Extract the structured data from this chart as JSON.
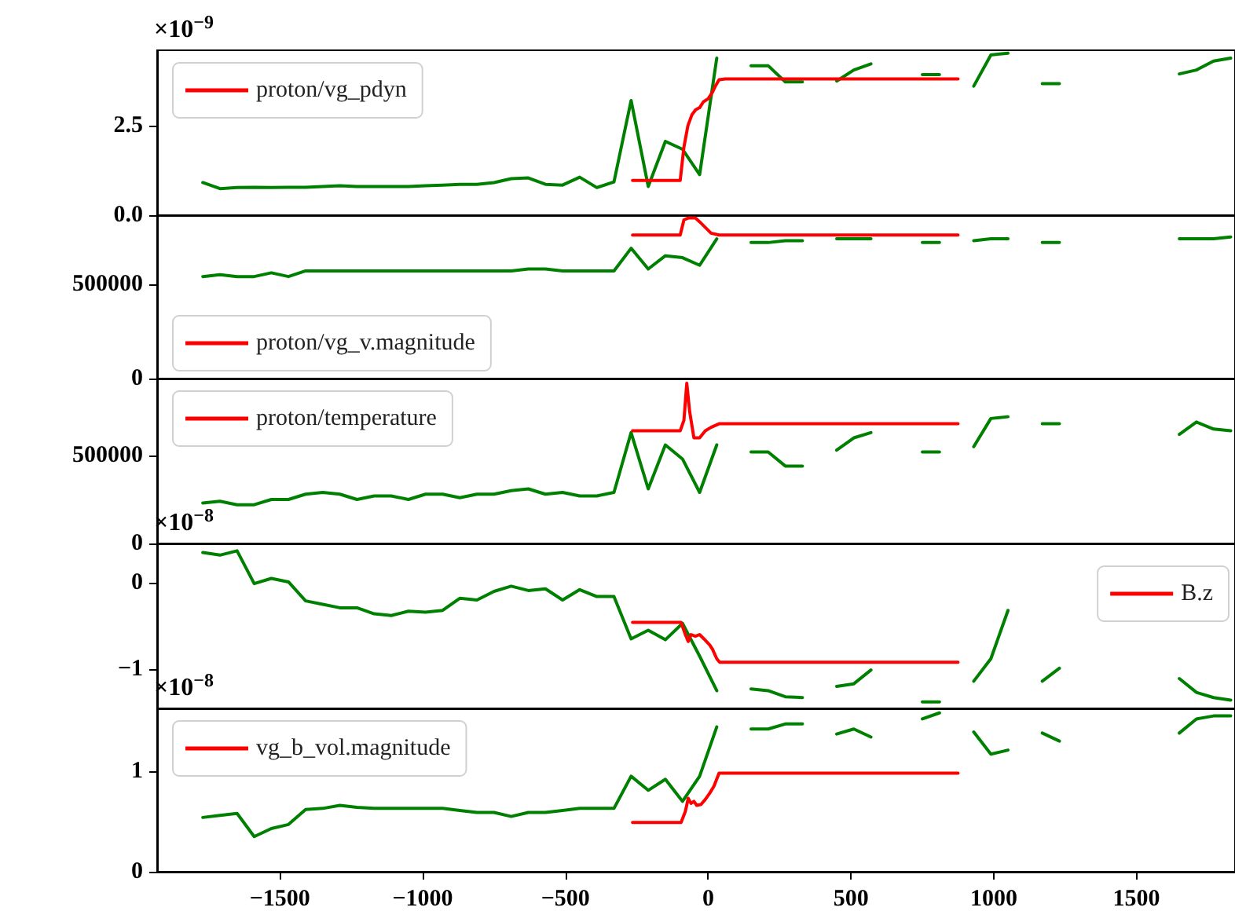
{
  "chart_data": [
    {
      "type": "line",
      "annotations": [
        "×10$^{−9}$"
      ],
      "legend": "top left",
      "tick_labels": "y",
      "xlim": [
        -1930,
        1845
      ],
      "ylim": [
        0,
        4.6
      ],
      "yticks": [
        {
          "value": 0,
          "label": "0.0"
        },
        {
          "value": 2.5,
          "label": "2.5"
        }
      ],
      "x": [
        -1770,
        -1710,
        -1650,
        -1590,
        -1530,
        -1470,
        -1410,
        -1350,
        -1290,
        -1230,
        -1170,
        -1110,
        -1050,
        -990,
        -930,
        -870,
        -810,
        -750,
        -690,
        -630,
        -570,
        -510,
        -450,
        -390,
        -330,
        -270,
        -210,
        -150,
        -90,
        -30,
        30,
        90,
        150,
        210,
        270,
        330,
        390,
        450,
        510,
        570,
        630,
        690,
        750,
        810,
        870,
        930,
        990,
        1050,
        1110,
        1170,
        1230,
        1290,
        1350,
        1410,
        1470,
        1530,
        1590,
        1650,
        1710,
        1770,
        1830
      ],
      "series": [
        {
          "color": "#008000",
          "values": [
            0.91,
            0.74,
            0.77,
            0.78,
            0.77,
            0.78,
            0.78,
            0.8,
            0.82,
            0.8,
            0.8,
            0.8,
            0.8,
            0.82,
            0.84,
            0.86,
            0.86,
            0.91,
            1.02,
            1.04,
            0.86,
            0.84,
            1.06,
            0.77,
            0.93,
            3.2,
            0.8,
            2.06,
            1.84,
            1.13,
            4.38,
            null,
            4.17,
            4.17,
            3.72,
            3.72,
            null,
            3.74,
            4.05,
            4.22,
            null,
            null,
            3.92,
            3.92,
            null,
            3.6,
            4.47,
            4.52,
            null,
            3.67,
            3.67,
            null,
            null,
            null,
            null,
            null,
            null,
            3.94,
            4.05,
            4.3,
            4.38
          ]
        },
        {
          "name": "proton/vg_pdyn",
          "color": "#ff0000",
          "x": [
            -265,
            -98,
            -85,
            -71,
            -57,
            -44,
            -30,
            -17,
            0,
            15,
            25,
            38,
            60,
            875
          ],
          "values": [
            0.97,
            0.97,
            1.9,
            2.5,
            2.8,
            2.94,
            3.0,
            3.16,
            3.25,
            3.43,
            3.6,
            3.78,
            3.8,
            3.8
          ]
        }
      ]
    },
    {
      "type": "line",
      "legend": "bottom left",
      "tick_labels": "y",
      "xlim": [
        -1930,
        1845
      ],
      "ylim": [
        0,
        865000
      ],
      "yticks": [
        0,
        500000
      ],
      "x": [
        -1770,
        -1710,
        -1650,
        -1590,
        -1530,
        -1470,
        -1410,
        -1350,
        -1290,
        -1230,
        -1170,
        -1110,
        -1050,
        -990,
        -930,
        -870,
        -810,
        -750,
        -690,
        -630,
        -570,
        -510,
        -450,
        -390,
        -330,
        -270,
        -210,
        -150,
        -90,
        -30,
        30,
        90,
        150,
        210,
        270,
        330,
        390,
        450,
        510,
        570,
        630,
        690,
        750,
        810,
        870,
        930,
        990,
        1050,
        1110,
        1170,
        1230,
        1290,
        1350,
        1410,
        1470,
        1530,
        1590,
        1650,
        1710,
        1770,
        1830
      ],
      "series": [
        {
          "color": "#008000",
          "values": [
            540000,
            550000,
            540000,
            540000,
            560000,
            540000,
            570000,
            570000,
            570000,
            570000,
            570000,
            570000,
            570000,
            570000,
            570000,
            570000,
            570000,
            570000,
            570000,
            580000,
            580000,
            570000,
            570000,
            570000,
            570000,
            690000,
            580000,
            650000,
            640000,
            600000,
            740000,
            null,
            720000,
            720000,
            730000,
            730000,
            null,
            740000,
            740000,
            740000,
            null,
            null,
            720000,
            720000,
            null,
            730000,
            740000,
            740000,
            null,
            720000,
            720000,
            null,
            null,
            null,
            null,
            null,
            null,
            740000,
            740000,
            740000,
            750000
          ]
        },
        {
          "name": "proton/vg_v.magnitude",
          "color": "#ff0000",
          "x": [
            -265,
            -98,
            -85,
            -70,
            -45,
            -30,
            -10,
            10,
            38,
            875
          ],
          "values": [
            760000,
            760000,
            840000,
            850000,
            850000,
            830000,
            800000,
            770000,
            760000,
            760000
          ]
        }
      ]
    },
    {
      "type": "line",
      "legend": "top left",
      "tick_labels": "y",
      "xlim": [
        -1930,
        1845
      ],
      "ylim": [
        0,
        937000
      ],
      "yticks": [
        0,
        500000
      ],
      "x": [
        -1770,
        -1710,
        -1650,
        -1590,
        -1530,
        -1470,
        -1410,
        -1350,
        -1290,
        -1230,
        -1170,
        -1110,
        -1050,
        -990,
        -930,
        -870,
        -810,
        -750,
        -690,
        -630,
        -570,
        -510,
        -450,
        -390,
        -330,
        -270,
        -210,
        -150,
        -90,
        -30,
        30,
        90,
        150,
        210,
        270,
        330,
        390,
        450,
        510,
        570,
        630,
        690,
        750,
        810,
        870,
        930,
        990,
        1050,
        1110,
        1170,
        1230,
        1290,
        1350,
        1410,
        1470,
        1530,
        1590,
        1650,
        1710,
        1770,
        1830
      ],
      "series": [
        {
          "color": "#008000",
          "values": [
            230000,
            240000,
            220000,
            220000,
            250000,
            250000,
            280000,
            290000,
            280000,
            250000,
            270000,
            270000,
            250000,
            280000,
            280000,
            260000,
            280000,
            280000,
            300000,
            310000,
            280000,
            290000,
            270000,
            270000,
            290000,
            630000,
            310000,
            560000,
            480000,
            290000,
            560000,
            null,
            520000,
            520000,
            440000,
            440000,
            null,
            530000,
            600000,
            630000,
            null,
            null,
            520000,
            520000,
            null,
            550000,
            710000,
            720000,
            null,
            680000,
            680000,
            null,
            null,
            null,
            null,
            null,
            null,
            620000,
            690000,
            650000,
            640000
          ]
        },
        {
          "name": "proton/temperature",
          "color": "#ff0000",
          "x": [
            -265,
            -98,
            -85,
            -75,
            -65,
            -50,
            -30,
            -10,
            10,
            38,
            875
          ],
          "values": [
            640000,
            640000,
            700000,
            910000,
            750000,
            600000,
            600000,
            640000,
            660000,
            680000,
            680000
          ]
        }
      ]
    },
    {
      "type": "line",
      "annotations": [
        "×10$^{−8}$"
      ],
      "legend": "right",
      "tick_labels": "y",
      "xlim": [
        -1930,
        1845
      ],
      "ylim": [
        -1.455,
        0.455
      ],
      "yticks": [
        {
          "value": -1,
          "label": "−1"
        },
        0
      ],
      "x": [
        -1770,
        -1710,
        -1650,
        -1590,
        -1530,
        -1470,
        -1410,
        -1350,
        -1290,
        -1230,
        -1170,
        -1110,
        -1050,
        -990,
        -930,
        -870,
        -810,
        -750,
        -690,
        -630,
        -570,
        -510,
        -450,
        -390,
        -330,
        -270,
        -210,
        -150,
        -90,
        -30,
        30,
        90,
        150,
        210,
        270,
        330,
        390,
        450,
        510,
        570,
        630,
        690,
        750,
        810,
        870,
        930,
        990,
        1050,
        1110,
        1170,
        1230,
        1290,
        1350,
        1410,
        1470,
        1530,
        1590,
        1650,
        1710,
        1770,
        1830
      ],
      "series": [
        {
          "color": "#008000",
          "values": [
            0.35,
            0.32,
            0.37,
            -0.01,
            0.05,
            0.01,
            -0.21,
            -0.25,
            -0.29,
            -0.29,
            -0.36,
            -0.38,
            -0.33,
            -0.34,
            -0.32,
            -0.18,
            -0.2,
            -0.1,
            -0.04,
            -0.09,
            -0.07,
            -0.2,
            -0.08,
            -0.16,
            -0.16,
            -0.65,
            -0.55,
            -0.66,
            -0.47,
            -0.85,
            -1.25,
            null,
            -1.23,
            -1.25,
            -1.32,
            -1.33,
            null,
            -1.2,
            -1.17,
            -1.01,
            null,
            null,
            -1.38,
            -1.38,
            null,
            -1.14,
            -0.88,
            -0.32,
            null,
            -1.14,
            -0.99,
            null,
            null,
            null,
            null,
            null,
            null,
            -1.11,
            -1.27,
            -1.33,
            -1.36
          ]
        },
        {
          "name": "B.z",
          "color": "#ff0000",
          "x": [
            -265,
            -95,
            -80,
            -70,
            -60,
            -45,
            -30,
            -15,
            5,
            15,
            30,
            40,
            875
          ],
          "values": [
            -0.46,
            -0.46,
            -0.6,
            -0.68,
            -0.6,
            -0.62,
            -0.6,
            -0.65,
            -0.72,
            -0.77,
            -0.88,
            -0.92,
            -0.92
          ]
        }
      ]
    },
    {
      "type": "line",
      "annotations": [
        "×10$^{−8}$"
      ],
      "legend": "top left",
      "xlim": [
        -1930,
        1845
      ],
      "xticks": [
        {
          "value": -1500,
          "label": "−1500"
        },
        {
          "value": -1000,
          "label": "−1000"
        },
        {
          "value": -500,
          "label": "−500"
        },
        0,
        500,
        1000,
        1500
      ],
      "ylim": [
        0,
        1.625
      ],
      "yticks": [
        0,
        1
      ],
      "x": [
        -1770,
        -1710,
        -1650,
        -1590,
        -1530,
        -1470,
        -1410,
        -1350,
        -1290,
        -1230,
        -1170,
        -1110,
        -1050,
        -990,
        -930,
        -870,
        -810,
        -750,
        -690,
        -630,
        -570,
        -510,
        -450,
        -390,
        -330,
        -270,
        -210,
        -150,
        -90,
        -30,
        30,
        90,
        150,
        210,
        270,
        330,
        390,
        450,
        510,
        570,
        630,
        690,
        750,
        810,
        870,
        930,
        990,
        1050,
        1110,
        1170,
        1230,
        1290,
        1350,
        1410,
        1470,
        1530,
        1590,
        1650,
        1710,
        1770,
        1830
      ],
      "series": [
        {
          "color": "#008000",
          "values": [
            0.54,
            0.56,
            0.58,
            0.35,
            0.43,
            0.47,
            0.62,
            0.63,
            0.66,
            0.64,
            0.63,
            0.63,
            0.63,
            0.63,
            0.63,
            0.61,
            0.59,
            0.59,
            0.55,
            0.59,
            0.59,
            0.61,
            0.63,
            0.63,
            0.63,
            0.95,
            0.81,
            0.92,
            0.7,
            0.95,
            1.44,
            null,
            1.42,
            1.42,
            1.47,
            1.47,
            null,
            1.37,
            1.42,
            1.34,
            null,
            null,
            1.52,
            1.58,
            null,
            1.39,
            1.17,
            1.21,
            null,
            1.38,
            1.3,
            null,
            null,
            null,
            null,
            null,
            null,
            1.38,
            1.52,
            1.55,
            1.55
          ]
        },
        {
          "name": "vg_b_vol.magnitude",
          "color": "#ff0000",
          "x": [
            -265,
            -95,
            -80,
            -70,
            -60,
            -50,
            -40,
            -25,
            -10,
            5,
            20,
            38,
            875
          ],
          "values": [
            0.49,
            0.49,
            0.6,
            0.73,
            0.68,
            0.7,
            0.66,
            0.67,
            0.72,
            0.78,
            0.85,
            0.98,
            0.98
          ]
        }
      ]
    }
  ]
}
